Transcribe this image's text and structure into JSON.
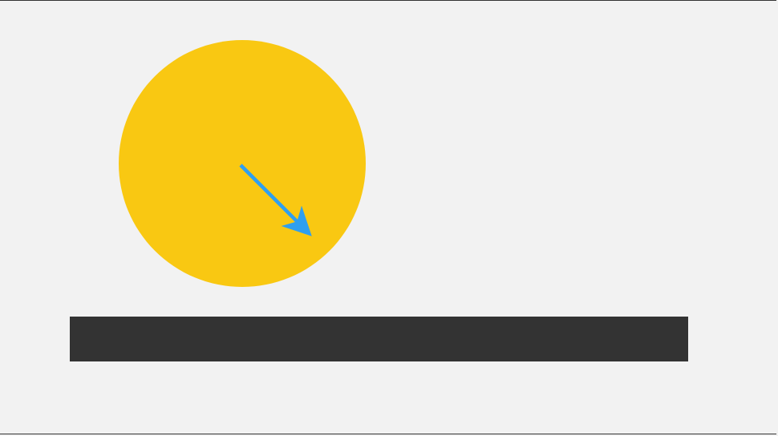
{
  "canvas": {
    "background_color": "#f2f2f2",
    "border_color": "#333333"
  },
  "ball": {
    "fill_color": "#f9c812",
    "icon": "circle"
  },
  "velocity_arrow": {
    "color": "#2f9ff0",
    "icon": "arrow-down-right-icon"
  },
  "ground_bar": {
    "fill_color": "#333333"
  }
}
